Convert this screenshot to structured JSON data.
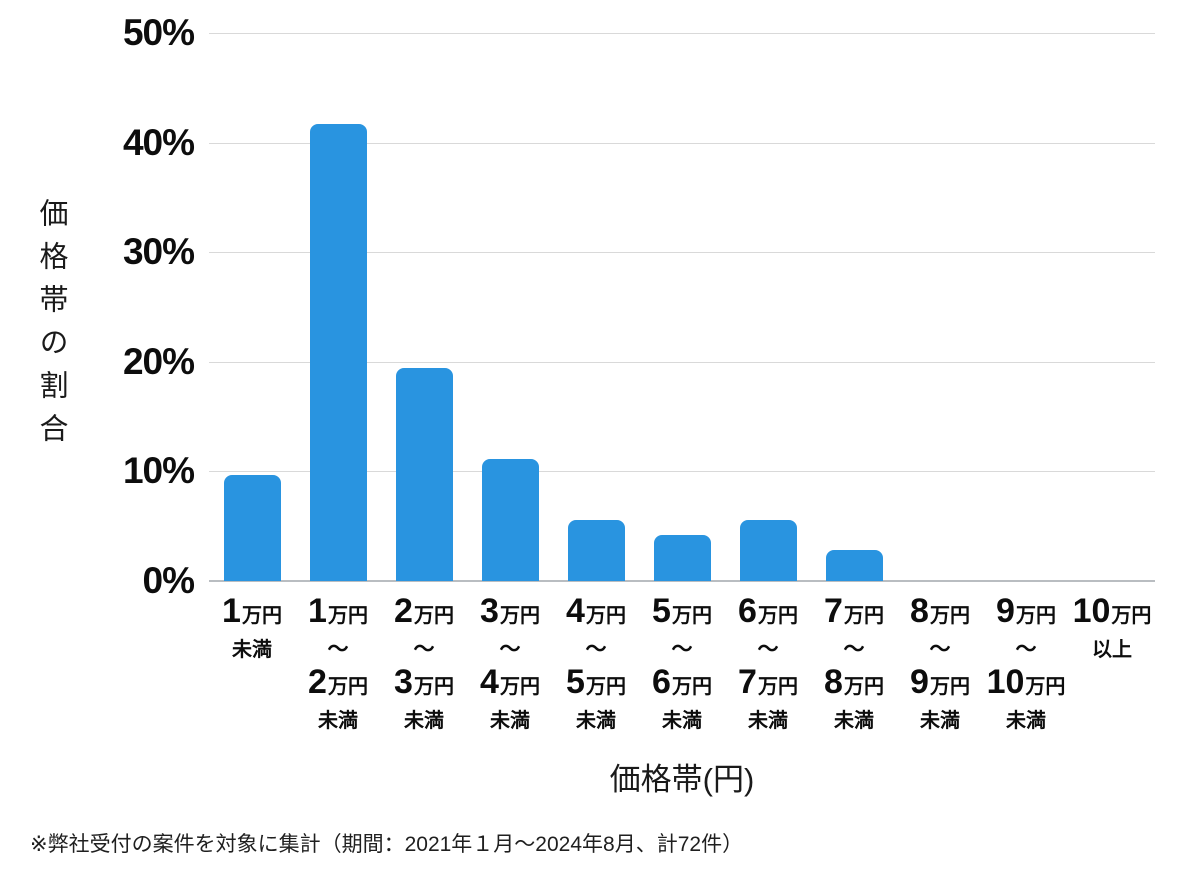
{
  "chart_data": {
    "type": "bar",
    "title": "",
    "xlabel": "価格帯(円)",
    "ylabel": "価格帯の割合",
    "ylim": [
      0,
      50
    ],
    "y_tick_labels": [
      "50%",
      "40%",
      "30%",
      "20%",
      "10%",
      "0%"
    ],
    "grid": true,
    "legend": "none",
    "bar_color": "#2994e0",
    "gridline_color": "#d9d9d9",
    "categories": [
      "1万円未満",
      "1万円〜2万円未満",
      "2万円〜3万円未満",
      "3万円〜4万円未満",
      "4万円〜5万円未満",
      "5万円〜6万円未満",
      "6万円〜7万円未満",
      "7万円〜8万円未満",
      "8万円〜9万円未満",
      "9万円〜10万円未満",
      "10万円以上"
    ],
    "category_label_parts": [
      {
        "num1": "1",
        "unit1": "万円",
        "tilde": "",
        "num2": "",
        "unit2": "",
        "suffix": "未満"
      },
      {
        "num1": "1",
        "unit1": "万円",
        "tilde": "〜",
        "num2": "2",
        "unit2": "万円",
        "suffix": "未満"
      },
      {
        "num1": "2",
        "unit1": "万円",
        "tilde": "〜",
        "num2": "3",
        "unit2": "万円",
        "suffix": "未満"
      },
      {
        "num1": "3",
        "unit1": "万円",
        "tilde": "〜",
        "num2": "4",
        "unit2": "万円",
        "suffix": "未満"
      },
      {
        "num1": "4",
        "unit1": "万円",
        "tilde": "〜",
        "num2": "5",
        "unit2": "万円",
        "suffix": "未満"
      },
      {
        "num1": "5",
        "unit1": "万円",
        "tilde": "〜",
        "num2": "6",
        "unit2": "万円",
        "suffix": "未満"
      },
      {
        "num1": "6",
        "unit1": "万円",
        "tilde": "〜",
        "num2": "7",
        "unit2": "万円",
        "suffix": "未満"
      },
      {
        "num1": "7",
        "unit1": "万円",
        "tilde": "〜",
        "num2": "8",
        "unit2": "万円",
        "suffix": "未満"
      },
      {
        "num1": "8",
        "unit1": "万円",
        "tilde": "〜",
        "num2": "9",
        "unit2": "万円",
        "suffix": "未満"
      },
      {
        "num1": "9",
        "unit1": "万円",
        "tilde": "〜",
        "num2": "10",
        "unit2": "万円",
        "suffix": "未満"
      },
      {
        "num1": "10",
        "unit1": "万円",
        "tilde": "",
        "num2": "",
        "unit2": "",
        "suffix": "以上"
      }
    ],
    "values": [
      9.7,
      41.7,
      19.4,
      11.1,
      5.6,
      4.2,
      5.6,
      2.8,
      0,
      0,
      0
    ],
    "unit": "%",
    "total_cases_shown_in_footnote": 72,
    "footnote": "※弊社受付の案件を対象に集計（期間：2021年１月〜2024年8月、計72件）"
  }
}
